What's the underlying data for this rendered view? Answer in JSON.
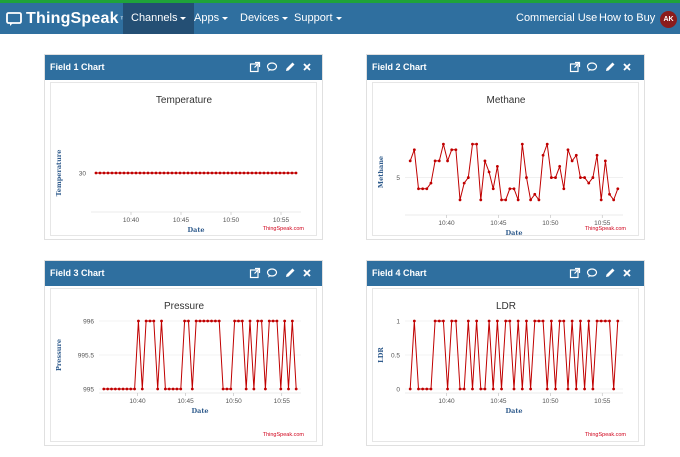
{
  "navbar": {
    "brand": "ThingSpeak",
    "brand_tm": "™",
    "menu": [
      {
        "label": "Channels",
        "active": true,
        "dropdown": true
      },
      {
        "label": "Apps",
        "active": false,
        "dropdown": true
      },
      {
        "label": "Devices",
        "active": false,
        "dropdown": true
      },
      {
        "label": "Support",
        "active": false,
        "dropdown": true
      }
    ],
    "right_links": [
      "Commercial Use",
      "How to Buy"
    ],
    "avatar_initials": "AK"
  },
  "colors": {
    "navbar_bg": "#2f6f9f",
    "line": "#c00000",
    "credit": "#d0021b",
    "axis_label": "#2f5b8c"
  },
  "cards": [
    {
      "header": "Field 1 Chart",
      "icons": [
        "external-link-icon",
        "comment-icon",
        "pencil-icon",
        "close-icon"
      ]
    },
    {
      "header": "Field 2 Chart",
      "icons": [
        "external-link-icon",
        "comment-icon",
        "pencil-icon",
        "close-icon"
      ]
    },
    {
      "header": "Field 3 Chart",
      "icons": [
        "external-link-icon",
        "comment-icon",
        "pencil-icon",
        "close-icon"
      ]
    },
    {
      "header": "Field 4 Chart",
      "icons": [
        "external-link-icon",
        "comment-icon",
        "pencil-icon",
        "close-icon"
      ]
    }
  ],
  "chart_data": [
    {
      "type": "line",
      "title": "Temperature",
      "xlabel": "Date",
      "ylabel": "Temperature",
      "credit": "ThingSpeak.com",
      "x_ticks": [
        "10:40",
        "10:45",
        "10:50",
        "10:55"
      ],
      "x_tick_minutes": [
        40,
        45,
        50,
        55
      ],
      "x_range": [
        36,
        57
      ],
      "y_ticks": [
        {
          "value": 30,
          "label": "30"
        }
      ],
      "y_range": [
        25,
        35
      ],
      "grid": false,
      "x": [
        36.5,
        36.9,
        37.3,
        37.7,
        38.1,
        38.5,
        38.9,
        39.3,
        39.7,
        40.1,
        40.5,
        40.9,
        41.3,
        41.7,
        42.1,
        42.5,
        42.9,
        43.3,
        43.7,
        44.1,
        44.5,
        44.9,
        45.3,
        45.7,
        46.1,
        46.5,
        46.9,
        47.3,
        47.7,
        48.1,
        48.5,
        48.9,
        49.3,
        49.7,
        50.1,
        50.5,
        50.9,
        51.3,
        51.7,
        52.1,
        52.5,
        52.9,
        53.3,
        53.7,
        54.1,
        54.5,
        54.9,
        55.3,
        55.7,
        56.1,
        56.5
      ],
      "values": [
        30,
        30,
        30,
        30,
        30,
        30,
        30,
        30,
        30,
        30,
        30,
        30,
        30,
        30,
        30,
        30,
        30,
        30,
        30,
        30,
        30,
        30,
        30,
        30,
        30,
        30,
        30,
        30,
        30,
        30,
        30,
        30,
        30,
        30,
        30,
        30,
        30,
        30,
        30,
        30,
        30,
        30,
        30,
        30,
        30,
        30,
        30,
        30,
        30,
        30,
        30
      ]
    },
    {
      "type": "line",
      "title": "Methane",
      "xlabel": "Date",
      "ylabel": "Methane",
      "credit": "ThingSpeak.com",
      "x_ticks": [
        "10:40",
        "10:45",
        "10:50",
        "10:55"
      ],
      "x_tick_minutes": [
        40,
        45,
        50,
        55
      ],
      "x_range": [
        36,
        57
      ],
      "y_ticks": [
        {
          "value": 5,
          "label": "5"
        }
      ],
      "y_range": [
        2,
        9
      ],
      "grid": true,
      "x": [
        36.5,
        36.9,
        37.3,
        37.7,
        38.1,
        38.5,
        38.9,
        39.3,
        39.7,
        40.1,
        40.5,
        40.9,
        41.3,
        41.7,
        42.1,
        42.5,
        42.9,
        43.3,
        43.7,
        44.1,
        44.5,
        44.9,
        45.3,
        45.7,
        46.1,
        46.5,
        46.9,
        47.3,
        47.7,
        48.1,
        48.5,
        48.9,
        49.3,
        49.7,
        50.1,
        50.5,
        50.9,
        51.3,
        51.7,
        52.1,
        52.5,
        52.9,
        53.3,
        53.7,
        54.1,
        54.5,
        54.9,
        55.3,
        55.7,
        56.1,
        56.5
      ],
      "values": [
        6.5,
        7.5,
        4,
        4,
        4,
        4.5,
        6.5,
        6.5,
        8,
        6.5,
        7.5,
        7.5,
        3,
        4.5,
        5,
        8,
        8,
        3,
        6.5,
        5.5,
        4,
        6,
        3,
        3,
        4,
        4,
        3,
        8,
        5,
        3,
        3.5,
        3,
        7,
        8,
        5,
        5,
        6,
        4,
        7.5,
        6.5,
        7,
        5,
        5,
        4.5,
        5,
        7,
        3,
        6.5,
        3.5,
        3,
        4
      ]
    },
    {
      "type": "line",
      "title": "Pressure",
      "xlabel": "Date",
      "ylabel": "Pressure",
      "credit": "ThingSpeak.com",
      "x_ticks": [
        "10:40",
        "10:45",
        "10:50",
        "10:55"
      ],
      "x_tick_minutes": [
        40,
        45,
        50,
        55
      ],
      "x_range": [
        36,
        57
      ],
      "y_ticks": [
        {
          "value": 995,
          "label": "995"
        },
        {
          "value": 995.5,
          "label": "995.5"
        },
        {
          "value": 996,
          "label": "996"
        }
      ],
      "y_range": [
        995,
        996
      ],
      "grid": true,
      "x": [
        36.5,
        36.9,
        37.3,
        37.7,
        38.1,
        38.5,
        38.9,
        39.3,
        39.7,
        40.1,
        40.5,
        40.9,
        41.3,
        41.7,
        42.1,
        42.5,
        42.9,
        43.3,
        43.7,
        44.1,
        44.5,
        44.9,
        45.3,
        45.7,
        46.1,
        46.5,
        46.9,
        47.3,
        47.7,
        48.1,
        48.5,
        48.9,
        49.3,
        49.7,
        50.1,
        50.5,
        50.9,
        51.3,
        51.7,
        52.1,
        52.5,
        52.9,
        53.3,
        53.7,
        54.1,
        54.5,
        54.9,
        55.3,
        55.7,
        56.1,
        56.5
      ],
      "values": [
        995,
        995,
        995,
        995,
        995,
        995,
        995,
        995,
        995,
        996,
        995,
        996,
        996,
        996,
        995,
        996,
        995,
        995,
        995,
        995,
        995,
        996,
        996,
        995,
        996,
        996,
        996,
        996,
        996,
        996,
        996,
        995,
        995,
        995,
        996,
        996,
        996,
        995,
        996,
        995,
        996,
        996,
        995,
        996,
        996,
        996,
        995,
        996,
        995,
        996,
        995
      ]
    },
    {
      "type": "line",
      "title": "LDR",
      "xlabel": "Date",
      "ylabel": "LDR",
      "credit": "ThingSpeak.com",
      "x_ticks": [
        "10:40",
        "10:45",
        "10:50",
        "10:55"
      ],
      "x_tick_minutes": [
        40,
        45,
        50,
        55
      ],
      "x_range": [
        36,
        57
      ],
      "y_ticks": [
        {
          "value": 0,
          "label": "0"
        },
        {
          "value": 0.5,
          "label": "0.5"
        },
        {
          "value": 1,
          "label": "1"
        }
      ],
      "y_range": [
        0,
        1
      ],
      "grid": true,
      "x": [
        36.5,
        36.9,
        37.3,
        37.7,
        38.1,
        38.5,
        38.9,
        39.3,
        39.7,
        40.1,
        40.5,
        40.9,
        41.3,
        41.7,
        42.1,
        42.5,
        42.9,
        43.3,
        43.7,
        44.1,
        44.5,
        44.9,
        45.3,
        45.7,
        46.1,
        46.5,
        46.9,
        47.3,
        47.7,
        48.1,
        48.5,
        48.9,
        49.3,
        49.7,
        50.1,
        50.5,
        50.9,
        51.3,
        51.7,
        52.1,
        52.5,
        52.9,
        53.3,
        53.7,
        54.1,
        54.5,
        54.9,
        55.3,
        55.7,
        56.1,
        56.5
      ],
      "values": [
        0,
        1,
        0,
        0,
        0,
        0,
        1,
        1,
        1,
        0,
        1,
        1,
        0,
        0,
        1,
        0,
        1,
        0,
        0,
        1,
        0,
        1,
        0,
        1,
        1,
        0,
        1,
        0,
        1,
        0,
        1,
        1,
        1,
        0,
        1,
        0,
        1,
        1,
        0,
        1,
        0,
        1,
        0,
        1,
        0,
        1,
        1,
        1,
        1,
        0,
        1
      ]
    }
  ]
}
